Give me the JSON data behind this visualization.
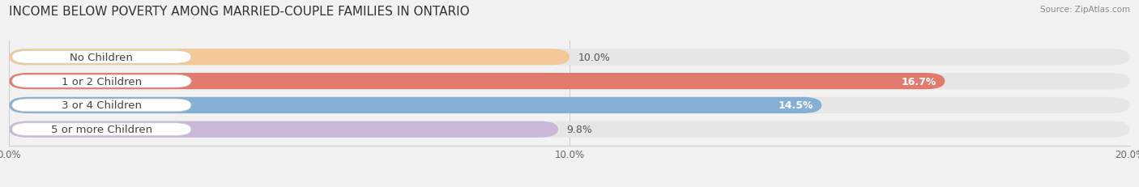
{
  "title": "INCOME BELOW POVERTY AMONG MARRIED-COUPLE FAMILIES IN ONTARIO",
  "source": "Source: ZipAtlas.com",
  "categories": [
    "No Children",
    "1 or 2 Children",
    "3 or 4 Children",
    "5 or more Children"
  ],
  "values": [
    10.0,
    16.7,
    14.5,
    9.8
  ],
  "bar_colors": [
    "#f5c897",
    "#e07b6e",
    "#85afd4",
    "#c9b8d8"
  ],
  "value_labels": [
    "10.0%",
    "16.7%",
    "14.5%",
    "9.8%"
  ],
  "value_inside": [
    false,
    true,
    true,
    false
  ],
  "xlim": [
    0,
    20.0
  ],
  "xticks": [
    0.0,
    10.0,
    20.0
  ],
  "xtick_labels": [
    "0.0%",
    "10.0%",
    "20.0%"
  ],
  "background_color": "#f2f2f2",
  "bar_bg_color": "#e6e6e6",
  "title_fontsize": 11,
  "label_fontsize": 9.5,
  "value_fontsize": 9
}
